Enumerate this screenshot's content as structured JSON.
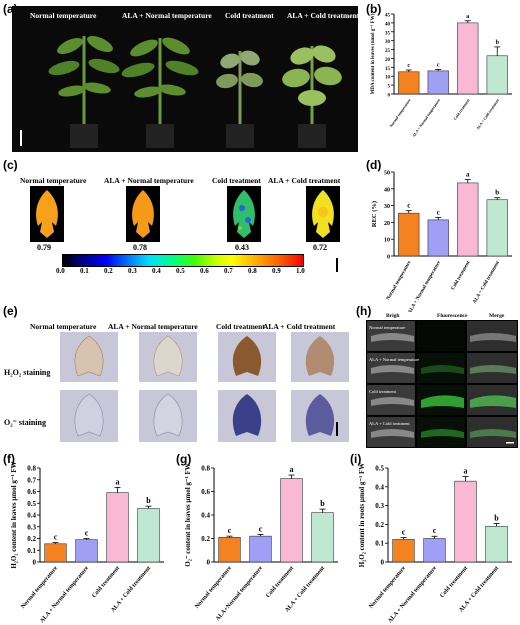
{
  "panel_labels": [
    "(a)",
    "(b)",
    "(c)",
    "(d)",
    "(e)",
    "(f)",
    "(g)",
    "(h)",
    "(i)"
  ],
  "treatments": [
    "Normal temperature",
    "ALA + Normal temperature",
    "Cold treatment",
    "ALA + Cold treatment"
  ],
  "fv_values": [
    "0.79",
    "0.78",
    "0.43",
    "0.72"
  ],
  "colorbar_ticks": [
    "0.0",
    "0.1",
    "0.2",
    "0.3",
    "0.4",
    "0.5",
    "0.6",
    "0.7",
    "0.8",
    "0.9",
    "1.0"
  ],
  "staining": {
    "h2o2": "H₂O₂ staining",
    "o2": "O₂⁻ staining"
  },
  "fluor_headers": [
    "Brigh",
    "Fluorescence",
    "Merge"
  ],
  "colors": {
    "normal": "#f58220",
    "ala_normal": "#9f9ff5",
    "cold": "#f9b9d4",
    "ala_cold": "#bfe8d2"
  },
  "chart_data": [
    {
      "id": "b",
      "type": "bar",
      "categories": [
        "Normal temperature",
        "ALA + Normal temperature",
        "Cold treatment",
        "ALA + Cold treatment"
      ],
      "values": [
        12.5,
        13,
        40,
        21.5
      ],
      "errors": [
        1,
        0.8,
        1.2,
        5
      ],
      "letters": [
        "c",
        "c",
        "a",
        "b"
      ],
      "ylabel": "MDA content in leaves (nmol g⁻¹ FW)",
      "ylim": [
        0,
        45
      ],
      "yticks": [
        "0",
        "5",
        "10",
        "15",
        "20",
        "25",
        "30",
        "35",
        "40",
        "45"
      ]
    },
    {
      "id": "d",
      "type": "bar",
      "categories": [
        "Normal temperature",
        "ALA + Normal temperature",
        "Cold treatment",
        "ALA + Cold treatment"
      ],
      "values": [
        25.5,
        21.5,
        43.5,
        33.5
      ],
      "errors": [
        1.5,
        1.5,
        2,
        1.2
      ],
      "letters": [
        "c",
        "c",
        "a",
        "b"
      ],
      "ylabel": "REC (%)",
      "ylim": [
        0,
        50
      ],
      "yticks": [
        "0",
        "10",
        "20",
        "30",
        "40",
        "50"
      ]
    },
    {
      "id": "f",
      "type": "bar",
      "categories": [
        "Normal temperature",
        "ALA + Normal temperature",
        "Cold treatment",
        "ALA + Cold treatment"
      ],
      "values": [
        0.155,
        0.19,
        0.59,
        0.455
      ],
      "errors": [
        0.01,
        0.01,
        0.045,
        0.02
      ],
      "letters": [
        "c",
        "c",
        "a",
        "b"
      ],
      "ylabel": "H₂O₂ content in leaves μmol g⁻¹ FW",
      "ylim": [
        0,
        0.8
      ],
      "yticks": [
        "0",
        "0.1",
        "0.2",
        "0.3",
        "0.4",
        "0.5",
        "0.6",
        "0.7",
        "0.8"
      ]
    },
    {
      "id": "g",
      "type": "bar",
      "categories": [
        "Normal temperature",
        "ALA+Normal temperature",
        "Cold treatment",
        "ALA + Cold treatment"
      ],
      "values": [
        0.21,
        0.22,
        0.71,
        0.42
      ],
      "errors": [
        0.01,
        0.015,
        0.03,
        0.03
      ],
      "letters": [
        "c",
        "c",
        "a",
        "b"
      ],
      "ylabel": "O₂⁻ content in leaves μmol g⁻¹ FW",
      "ylim": [
        0,
        0.8
      ],
      "yticks": [
        "0",
        "0.2",
        "0.4",
        "0.6",
        "0.8"
      ]
    },
    {
      "id": "i",
      "type": "bar",
      "categories": [
        "Normal temperature",
        "ALA + Normal temperature",
        "Cold treatment",
        "ALA + Cold treatment"
      ],
      "values": [
        0.12,
        0.125,
        0.43,
        0.19
      ],
      "errors": [
        0.01,
        0.012,
        0.025,
        0.015
      ],
      "letters": [
        "c",
        "c",
        "a",
        "b"
      ],
      "ylabel": "H₂O₂ content in roots μmol g⁻¹ FW",
      "ylim": [
        0,
        0.5
      ],
      "yticks": [
        "0",
        "0.1",
        "0.2",
        "0.3",
        "0.4",
        "0.5"
      ]
    }
  ]
}
